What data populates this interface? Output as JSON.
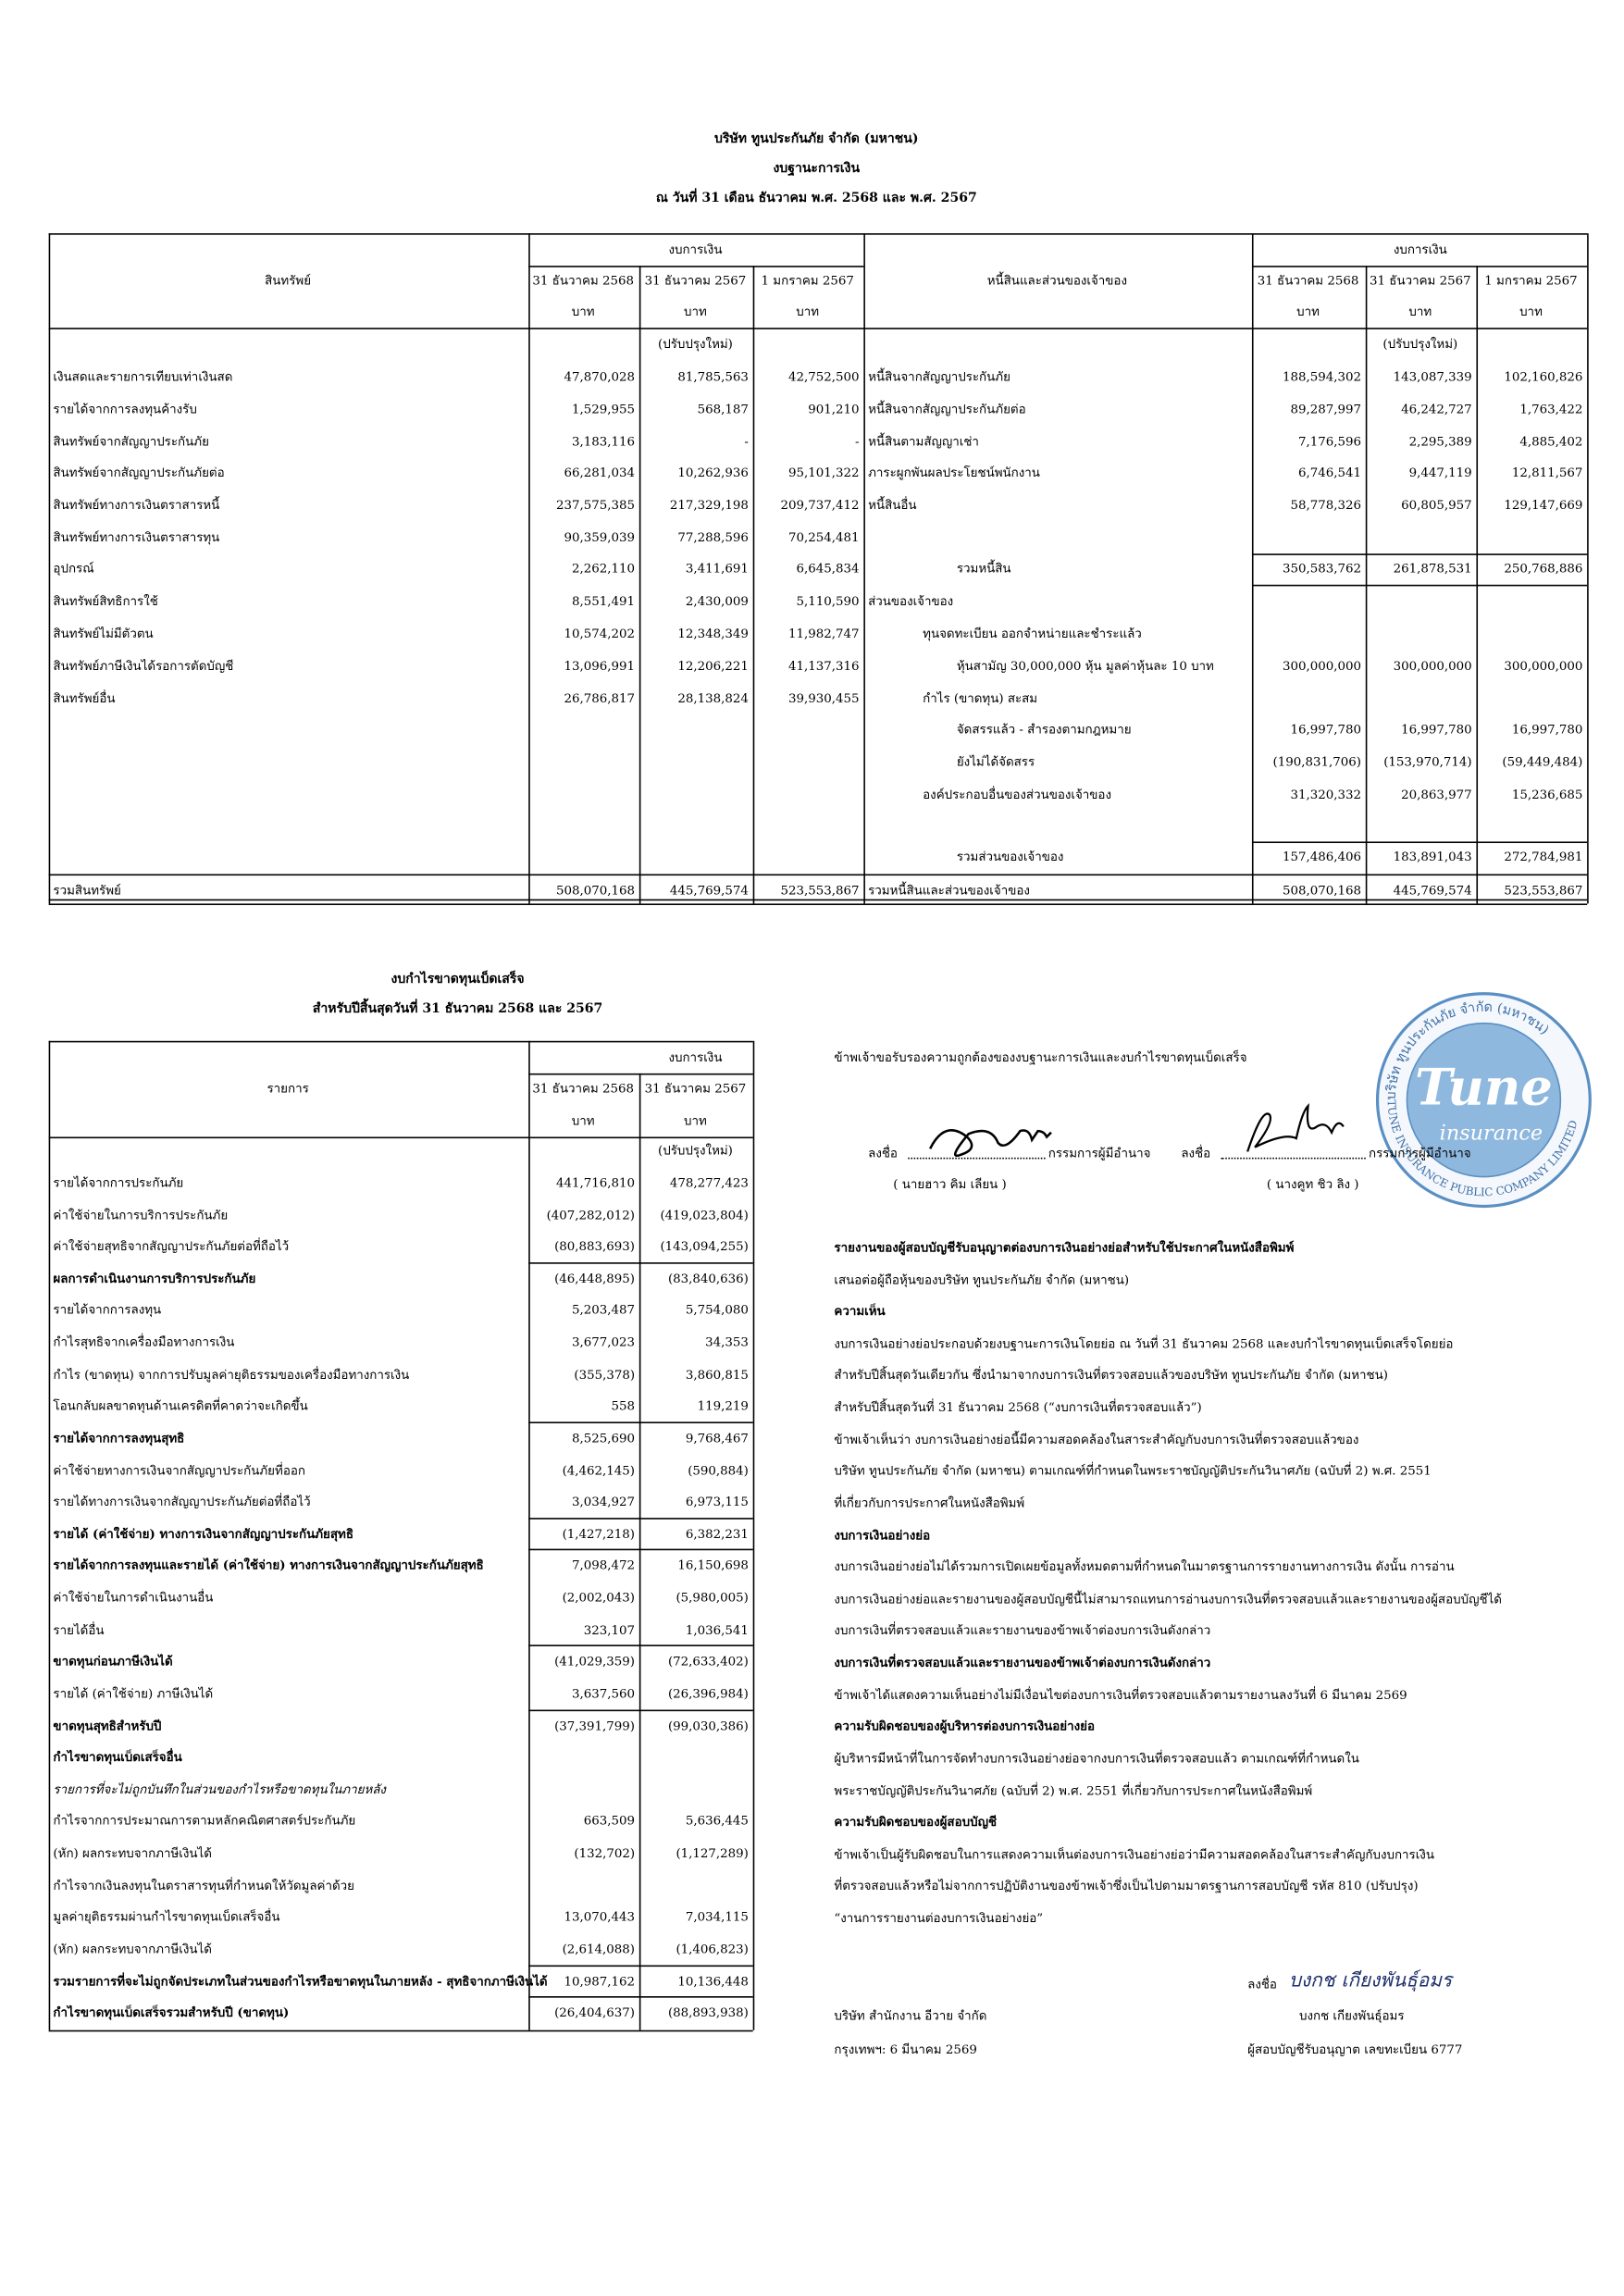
{
  "header": {
    "company": "บริษัท ทูนประกันภัย จำกัด (มหาชน)",
    "title": "งบฐานะการเงิน",
    "date": "ณ วันที่ 31 เดือน ธันวาคม พ.ศ. 2568 และ พ.ศ. 2567"
  },
  "balance_sheet": {
    "assets_label": "สินทรัพย์",
    "liabilities_label": "หนี้สินและส่วนของเจ้าของ",
    "group": "งบการเงิน",
    "columns": [
      "31 ธันวาคม 2568",
      "31 ธันวาคม 2567",
      "1 มกราคม 2567"
    ],
    "unit": "บาท",
    "restated": "(ปรับปรุงใหม่)",
    "assets": [
      [
        "เงินสดและรายการเทียบเท่าเงินสด",
        "47,870,028",
        "81,785,563",
        "42,752,500"
      ],
      [
        "รายได้จากการลงทุนค้างรับ",
        "1,529,955",
        "568,187",
        "901,210"
      ],
      [
        "สินทรัพย์จากสัญญาประกันภัย",
        "3,183,116",
        "-",
        "-"
      ],
      [
        "สินทรัพย์จากสัญญาประกันภัยต่อ",
        "66,281,034",
        "10,262,936",
        "95,101,322"
      ],
      [
        "สินทรัพย์ทางการเงินตราสารหนี้",
        "237,575,385",
        "217,329,198",
        "209,737,412"
      ],
      [
        "สินทรัพย์ทางการเงินตราสารทุน",
        "90,359,039",
        "77,288,596",
        "70,254,481"
      ],
      [
        "อุปกรณ์",
        "2,262,110",
        "3,411,691",
        "6,645,834"
      ],
      [
        "สินทรัพย์สิทธิการใช้",
        "8,551,491",
        "2,430,009",
        "5,110,590"
      ],
      [
        "สินทรัพย์ไม่มีตัวตน",
        "10,574,202",
        "12,348,349",
        "11,982,747"
      ],
      [
        "สินทรัพย์ภาษีเงินได้รอการตัดบัญชี",
        "13,096,991",
        "12,206,221",
        "41,137,316"
      ],
      [
        "สินทรัพย์อื่น",
        "26,786,817",
        "28,138,824",
        "39,930,455"
      ]
    ],
    "assets_total": [
      "รวมสินทรัพย์",
      "508,070,168",
      "445,769,574",
      "523,553,867"
    ],
    "liabilities": [
      [
        "หนี้สินจากสัญญาประกันภัย",
        "188,594,302",
        "143,087,339",
        "102,160,826"
      ],
      [
        "หนี้สินจากสัญญาประกันภัยต่อ",
        "89,287,997",
        "46,242,727",
        "1,763,422"
      ],
      [
        "หนี้สินตามสัญญาเช่า",
        "7,176,596",
        "2,295,389",
        "4,885,402"
      ],
      [
        "ภาระผูกพันผลประโยชน์พนักงาน",
        "6,746,541",
        "9,447,119",
        "12,811,567"
      ],
      [
        "หนี้สินอื่น",
        "58,778,326",
        "60,805,957",
        "129,147,669"
      ],
      [
        "รวมหนี้สิน",
        "350,583,762",
        "261,878,531",
        "250,768,886"
      ],
      [
        "ส่วนของเจ้าของ"
      ],
      [
        "ทุนจดทะเบียน ออกจำหน่ายและชำระแล้ว"
      ],
      [
        "หุ้นสามัญ 30,000,000 หุ้น มูลค่าหุ้นละ 10 บาท",
        "300,000,000",
        "300,000,000",
        "300,000,000"
      ],
      [
        "กำไร (ขาดทุน) สะสม"
      ],
      [
        "จัดสรรแล้ว - สำรองตามกฎหมาย",
        "16,997,780",
        "16,997,780",
        "16,997,780"
      ],
      [
        "ยังไม่ได้จัดสรร",
        "(190,831,706)",
        "(153,970,714)",
        "(59,449,484)"
      ],
      [
        "องค์ประกอบอื่นของส่วนของเจ้าของ",
        "31,320,332",
        "20,863,977",
        "15,236,685"
      ],
      [
        "รวมส่วนของเจ้าของ",
        "157,486,406",
        "183,891,043",
        "272,784,981"
      ]
    ],
    "liabilities_total": [
      "รวมหนี้สินและส่วนของเจ้าของ",
      "508,070,168",
      "445,769,574",
      "523,553,867"
    ]
  },
  "income_statement": {
    "title": "งบกำไรขาดทุนเบ็ดเสร็จ",
    "subtitle": "สำหรับปีสิ้นสุดวันที่ 31 ธันวาคม 2568 และ 2567",
    "item_label": "รายการ",
    "group": "งบการเงิน",
    "columns": [
      "31 ธันวาคม 2568",
      "31 ธันวาคม 2567"
    ],
    "unit": "บาท",
    "restated": "(ปรับปรุงใหม่)",
    "rows": [
      [
        "รายได้จากการประกันภัย",
        "441,716,810",
        "478,277,423"
      ],
      [
        "ค่าใช้จ่ายในการบริการประกันภัย",
        "(407,282,012)",
        "(419,023,804)"
      ],
      [
        "ค่าใช้จ่ายสุทธิจากสัญญาประกันภัยต่อที่ถือไว้",
        "(80,883,693)",
        "(143,094,255)"
      ],
      [
        "ผลการดำเนินงานการบริการประกันภัย",
        "(46,448,895)",
        "(83,840,636)"
      ],
      [
        "รายได้จากการลงทุน",
        "5,203,487",
        "5,754,080"
      ],
      [
        "กำไรสุทธิจากเครื่องมือทางการเงิน",
        "3,677,023",
        "34,353"
      ],
      [
        "กำไร (ขาดทุน) จากการปรับมูลค่ายุติธรรมของเครื่องมือทางการเงิน",
        "(355,378)",
        "3,860,815"
      ],
      [
        "โอนกลับผลขาดทุนด้านเครดิตที่คาดว่าจะเกิดขึ้น",
        "558",
        "119,219"
      ],
      [
        "รายได้จากการลงทุนสุทธิ",
        "8,525,690",
        "9,768,467"
      ],
      [
        "ค่าใช้จ่ายทางการเงินจากสัญญาประกันภัยที่ออก",
        "(4,462,145)",
        "(590,884)"
      ],
      [
        "รายได้ทางการเงินจากสัญญาประกันภัยต่อที่ถือไว้",
        "3,034,927",
        "6,973,115"
      ],
      [
        "รายได้ (ค่าใช้จ่าย) ทางการเงินจากสัญญาประกันภัยสุทธิ",
        "(1,427,218)",
        "6,382,231"
      ],
      [
        "รายได้จากการลงทุนและรายได้ (ค่าใช้จ่าย) ทางการเงินจากสัญญาประกันภัยสุทธิ",
        "7,098,472",
        "16,150,698"
      ],
      [
        "ค่าใช้จ่ายในการดำเนินงานอื่น",
        "(2,002,043)",
        "(5,980,005)"
      ],
      [
        "รายได้อื่น",
        "323,107",
        "1,036,541"
      ],
      [
        "ขาดทุนก่อนภาษีเงินได้",
        "(41,029,359)",
        "(72,633,402)"
      ],
      [
        "รายได้ (ค่าใช้จ่าย) ภาษีเงินได้",
        "3,637,560",
        "(26,396,984)"
      ],
      [
        "ขาดทุนสุทธิสำหรับปี",
        "(37,391,799)",
        "(99,030,386)"
      ],
      [
        "กำไรขาดทุนเบ็ดเสร็จอื่น"
      ],
      [
        "รายการที่จะไม่ถูกบันทึกในส่วนของกำไรหรือขาดทุนในภายหลัง"
      ],
      [
        "กำไรจากการประมาณการตามหลักคณิตศาสตร์ประกันภัย",
        "663,509",
        "5,636,445"
      ],
      [
        "(หัก) ผลกระทบจากภาษีเงินได้",
        "(132,702)",
        "(1,127,289)"
      ],
      [
        "กำไรจากเงินลงทุนในตราสารทุนที่กำหนดให้วัดมูลค่าด้วย"
      ],
      [
        "มูลค่ายุติธรรมผ่านกำไรขาดทุนเบ็ดเสร็จอื่น",
        "13,070,443",
        "7,034,115"
      ],
      [
        "(หัก) ผลกระทบจากภาษีเงินได้",
        "(2,614,088)",
        "(1,406,823)"
      ],
      [
        "รวมรายการที่จะไม่ถูกจัดประเภทในส่วนของกำไรหรือขาดทุนในภายหลัง - สุทธิจากภาษีเงินได้",
        "10,987,162",
        "10,136,448"
      ],
      [
        "กำไรขาดทุนเบ็ดเสร็จรวมสำหรับปี (ขาดทุน)",
        "(26,404,637)",
        "(88,893,938)"
      ]
    ]
  },
  "certification": "ข้าพเจ้าขอรับรองความถูกต้องของงบฐานะการเงินและงบกำไรขาดทุนเบ็ดเสร็จ",
  "directors": {
    "sign_label": "ลงชื่อ",
    "role": "กรรมการผู้มีอำนาจ",
    "names": [
      "( นายฮาว คิม เลียน )",
      "( นางคูท ชิว ลิง )"
    ]
  },
  "stamp": {
    "ring_thai": "บริษัท ทูนประกันภัย จำกัด (มหาชน)",
    "ring_english": "TUNE INSURANCE PUBLIC COMPANY LIMITED",
    "logo": "Tune",
    "logo_sub": "insurance"
  },
  "report": {
    "lines": [
      "รายงานของผู้สอบบัญชีรับอนุญาตต่องบการเงินอย่างย่อสำหรับใช้ประกาศในหนังสือพิมพ์",
      "เสนอต่อผู้ถือหุ้นของบริษัท ทูนประกันภัย จำกัด (มหาชน)",
      "ความเห็น",
      "งบการเงินอย่างย่อประกอบด้วยงบฐานะการเงินโดยย่อ ณ วันที่ 31 ธันวาคม 2568 และงบกำไรขาดทุนเบ็ดเสร็จโดยย่อ",
      "สำหรับปีสิ้นสุดวันเดียวกัน ซึ่งนำมาจากงบการเงินที่ตรวจสอบแล้วของบริษัท ทูนประกันภัย จำกัด (มหาชน)",
      "สำหรับปีสิ้นสุดวันที่ 31 ธันวาคม 2568 (“งบการเงินที่ตรวจสอบแล้ว”)",
      "ข้าพเจ้าเห็นว่า งบการเงินอย่างย่อนี้มีความสอดคล้องในสาระสำคัญกับงบการเงินที่ตรวจสอบแล้วของ",
      "บริษัท ทูนประกันภัย จำกัด (มหาชน) ตามเกณฑ์ที่กำหนดในพระราชบัญญัติประกันวินาศภัย (ฉบับที่ 2) พ.ศ. 2551",
      "ที่เกี่ยวกับการประกาศในหนังสือพิมพ์",
      "งบการเงินอย่างย่อ",
      "งบการเงินอย่างย่อไม่ได้รวมการเปิดเผยข้อมูลทั้งหมดตามที่กำหนดในมาตรฐานการรายงานทางการเงิน ดังนั้น การอ่าน",
      "งบการเงินอย่างย่อและรายงานของผู้สอบบัญชีนี้ไม่สามารถแทนการอ่านงบการเงินที่ตรวจสอบแล้วและรายงานของผู้สอบบัญชีได้",
      "งบการเงินที่ตรวจสอบแล้วและรายงานของข้าพเจ้าต่องบการเงินดังกล่าว",
      "งบการเงินที่ตรวจสอบแล้วและรายงานของข้าพเจ้าต่องบการเงินดังกล่าว",
      "ข้าพเจ้าได้แสดงความเห็นอย่างไม่มีเงื่อนไขต่องบการเงินที่ตรวจสอบแล้วตามรายงานลงวันที่ 6 มีนาคม 2569",
      "ความรับผิดชอบของผู้บริหารต่องบการเงินอย่างย่อ",
      "ผู้บริหารมีหน้าที่ในการจัดทำงบการเงินอย่างย่อจากงบการเงินที่ตรวจสอบแล้ว ตามเกณฑ์ที่กำหนดใน",
      "พระราชบัญญัติประกันวินาศภัย (ฉบับที่ 2) พ.ศ. 2551 ที่เกี่ยวกับการประกาศในหนังสือพิมพ์",
      "ความรับผิดชอบของผู้สอบบัญชี",
      "ข้าพเจ้าเป็นผู้รับผิดชอบในการแสดงความเห็นต่องบการเงินอย่างย่อว่ามีความสอดคล้องในสาระสำคัญกับงบการเงิน",
      "ที่ตรวจสอบแล้วหรือไม่จากการปฏิบัติงานของข้าพเจ้าซึ่งเป็นไปตามมาตรฐานการสอบบัญชี รหัส 810 (ปรับปรุง)",
      "“งานการรายงานต่องบการเงินอย่างย่อ”"
    ]
  },
  "auditor": {
    "sign_label": "ลงชื่อ",
    "name": "บงกช เกียงพันธุ์อมร",
    "firm": "บริษัท สำนักงาน อีวาย จำกัด",
    "place_date": "กรุงเทพฯ: 6 มีนาคม 2569",
    "license": "ผู้สอบบัญชีรับอนุญาต เลขทะเบียน 6777"
  }
}
